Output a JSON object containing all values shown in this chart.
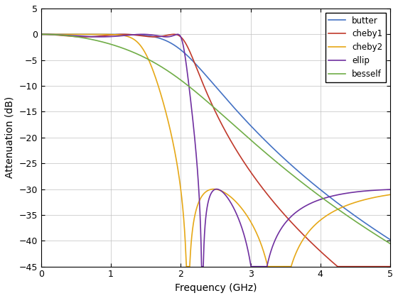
{
  "title": "",
  "xlabel": "Frequency (GHz)",
  "ylabel": "Attenuation (dB)",
  "xlim": [
    0,
    5
  ],
  "ylim": [
    -45,
    5
  ],
  "yticks": [
    5,
    0,
    -5,
    -10,
    -15,
    -20,
    -25,
    -30,
    -35,
    -40,
    -45
  ],
  "xticks": [
    0,
    1,
    2,
    3,
    4,
    5
  ],
  "filter_order": 5,
  "cutoff_ghz": 2.0,
  "ripple_db": 0.5,
  "stopband_db": 30.0,
  "colors": {
    "butter": "#4472C4",
    "cheby1": "#C0392B",
    "cheby2": "#E6A817",
    "ellip": "#7030A0",
    "besself": "#70AD47"
  },
  "legend_labels": [
    "butter",
    "cheby1",
    "cheby2",
    "ellip",
    "besself"
  ],
  "grid": true,
  "background": "#FFFFFF"
}
